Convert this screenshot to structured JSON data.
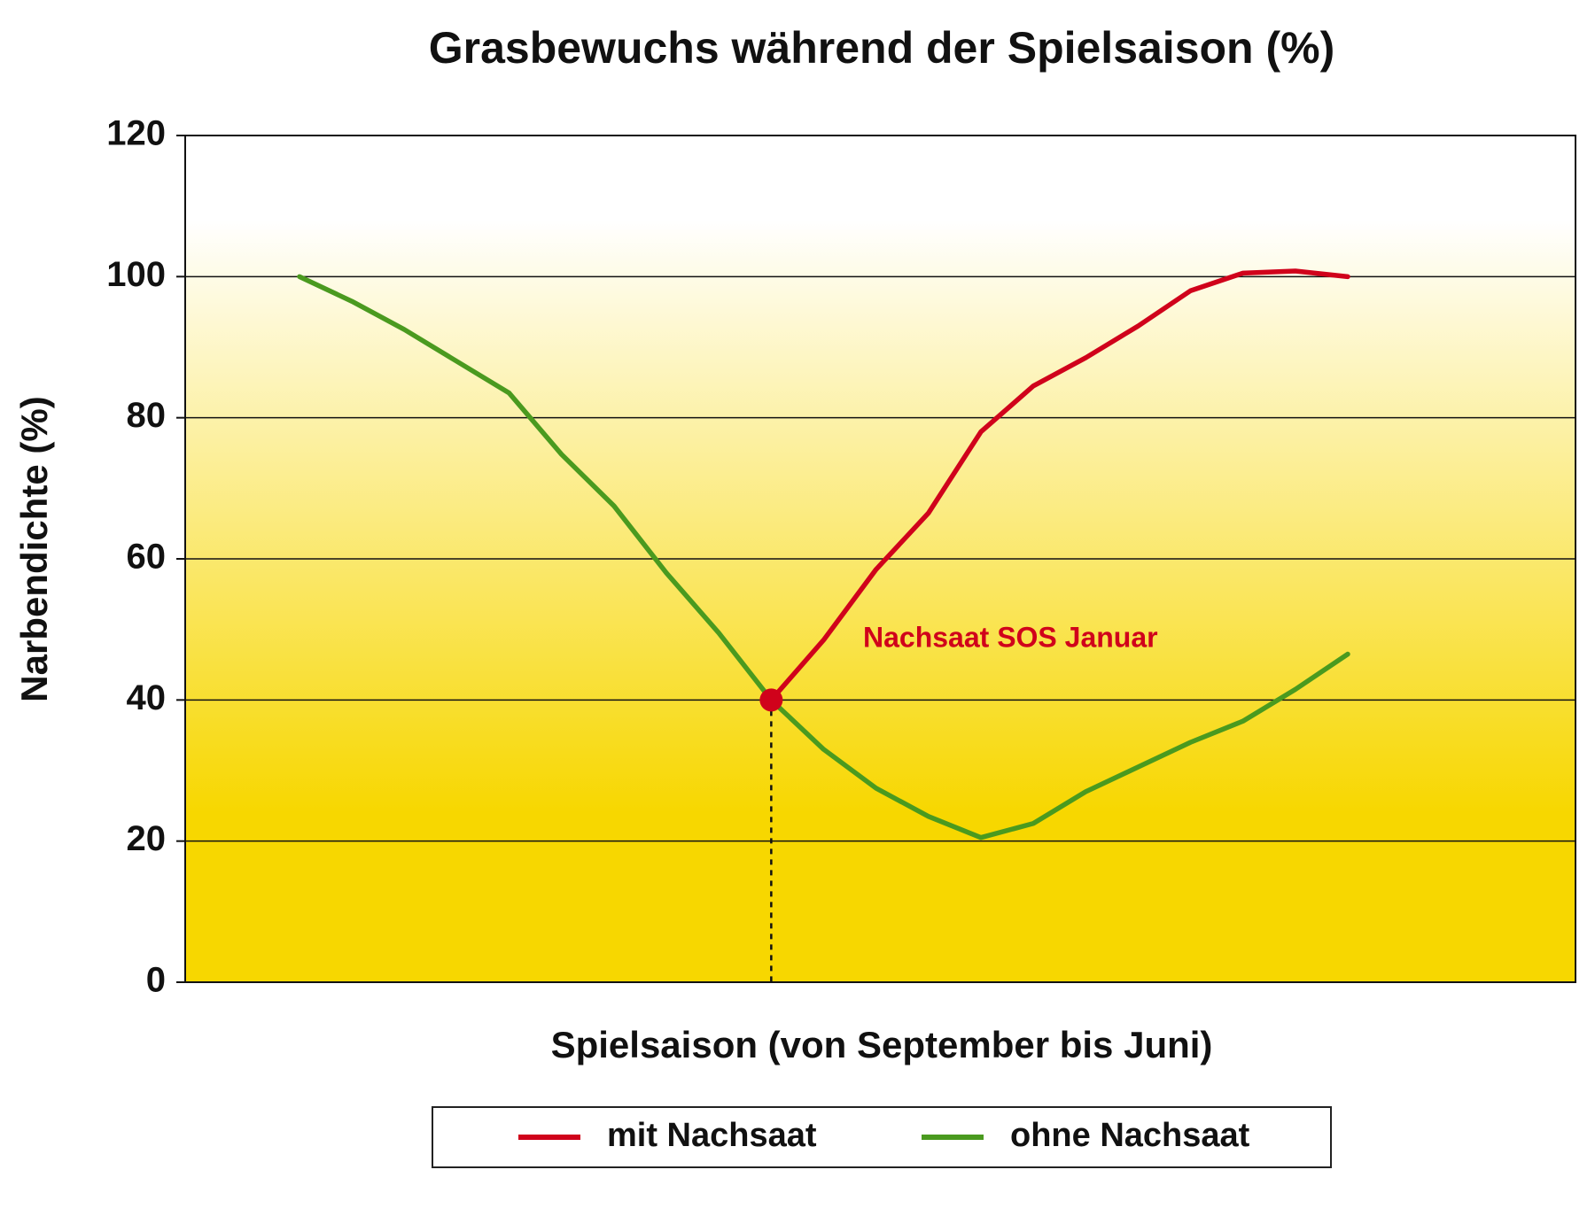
{
  "chart_data": {
    "type": "line",
    "title": "Grasbewuchs während der Spielsaison (%)",
    "x_label": "Spielsaison (von September bis Juni)",
    "y_label": "Narbendichte (%)",
    "categories": [
      null,
      null,
      null,
      null,
      null,
      null,
      null,
      null,
      null,
      null,
      null,
      null,
      null,
      null,
      null,
      null,
      null,
      null,
      null,
      null,
      null
    ],
    "series": [
      {
        "name": "mit Nachsaat",
        "color": "#d0021b",
        "values": [
          null,
          null,
          null,
          null,
          null,
          null,
          null,
          null,
          null,
          40,
          48.5,
          58.5,
          66.5,
          78,
          84.5,
          88.5,
          93,
          98,
          100.5,
          100.8,
          100
        ]
      },
      {
        "name": "ohne Nachsaat",
        "color": "#4a9a1f",
        "values": [
          100,
          96.5,
          92.5,
          88,
          83.5,
          74.8,
          67.5,
          58,
          49.5,
          40,
          33,
          27.5,
          23.5,
          20.5,
          22.5,
          27,
          30.5,
          34,
          37,
          41.5,
          46.5
        ]
      }
    ],
    "annotation": "Nachsaat SOS Januar",
    "ylim": [
      0,
      120
    ],
    "yticks": [
      0,
      20,
      40,
      60,
      80,
      100,
      120
    ],
    "grid": true
  }
}
